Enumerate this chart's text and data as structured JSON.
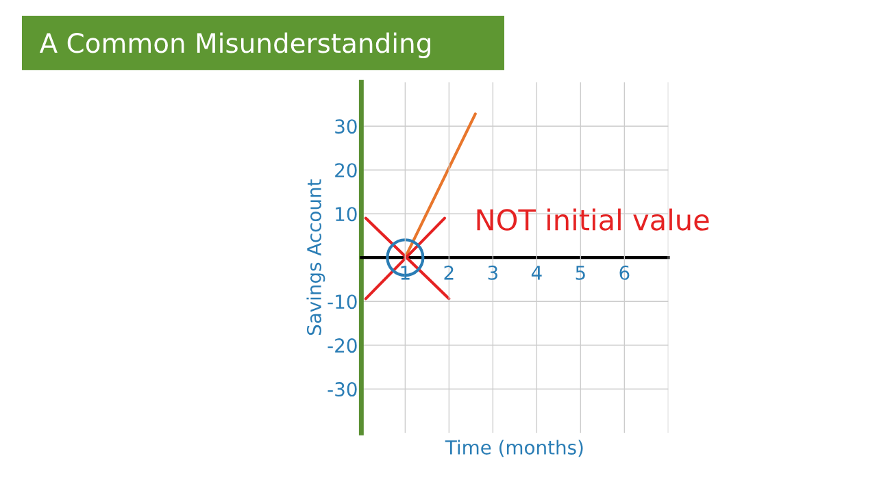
{
  "chart_data": {
    "type": "line",
    "title": "A Common Misunderstanding",
    "xlabel": "Time (months)",
    "ylabel": "Savings Account",
    "xlim": [
      0,
      7
    ],
    "ylim": [
      -40,
      40
    ],
    "xticks": [
      1,
      2,
      3,
      4,
      5,
      6,
      {
        "value": 7,
        "label": null
      }
    ],
    "yticks": [
      -30,
      -20,
      -10,
      10,
      20,
      30
    ],
    "grid": true,
    "legend": false,
    "series": [
      {
        "color": "#e8762c",
        "x": [
          1,
          2.6
        ],
        "values": [
          0,
          32.8
        ]
      },
      {
        "color": "#e52222",
        "x": [
          0.1,
          2.0
        ],
        "values": [
          9,
          -9.4
        ]
      },
      {
        "color": "#e52222",
        "x": [
          1.9,
          0.1
        ],
        "values": [
          9,
          -9.4
        ]
      },
      {
        "type": "scatter",
        "color": "#2a7db5",
        "x": [
          1
        ],
        "values": [
          0
        ]
      }
    ],
    "annotations": [
      "NOT initial value"
    ]
  }
}
